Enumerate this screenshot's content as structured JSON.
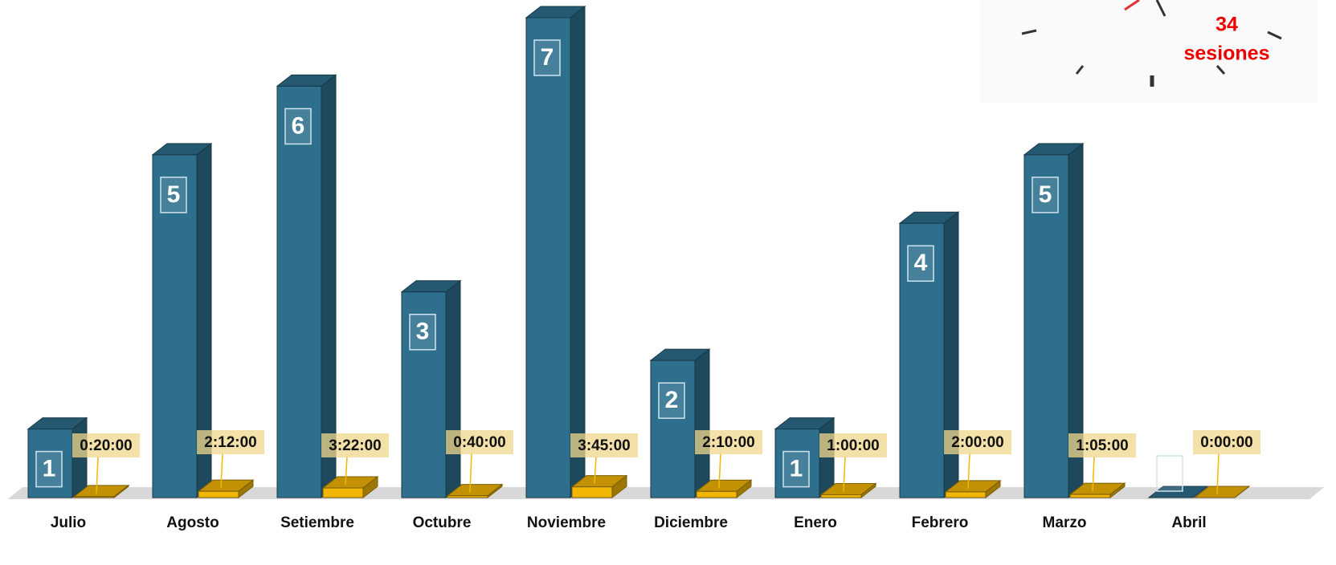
{
  "chart_data": {
    "type": "bar3d",
    "categories": [
      "Julio",
      "Agosto",
      "Setiembre",
      "Octubre",
      "Noviembre",
      "Diciembre",
      "Enero",
      "Febrero",
      "Marzo",
      "Abril"
    ],
    "series": [
      {
        "color": "#2e6f8e",
        "values": [
          1,
          5,
          6,
          3,
          7,
          2,
          1,
          4,
          5,
          0
        ]
      },
      {
        "color": "#f2b705",
        "values": [
          0.01389,
          0.09167,
          0.14028,
          0.02778,
          0.15625,
          0.09028,
          0.04167,
          0.08333,
          0.04514,
          0
        ],
        "value_labels": [
          "0:20:00",
          "2:12:00",
          "3:22:00",
          "0:40:00",
          "3:45:00",
          "2:10:00",
          "1:00:00",
          "2:00:00",
          "1:05:00",
          "0:00:00"
        ]
      }
    ],
    "annotation": [
      "34",
      "sesiones"
    ]
  }
}
